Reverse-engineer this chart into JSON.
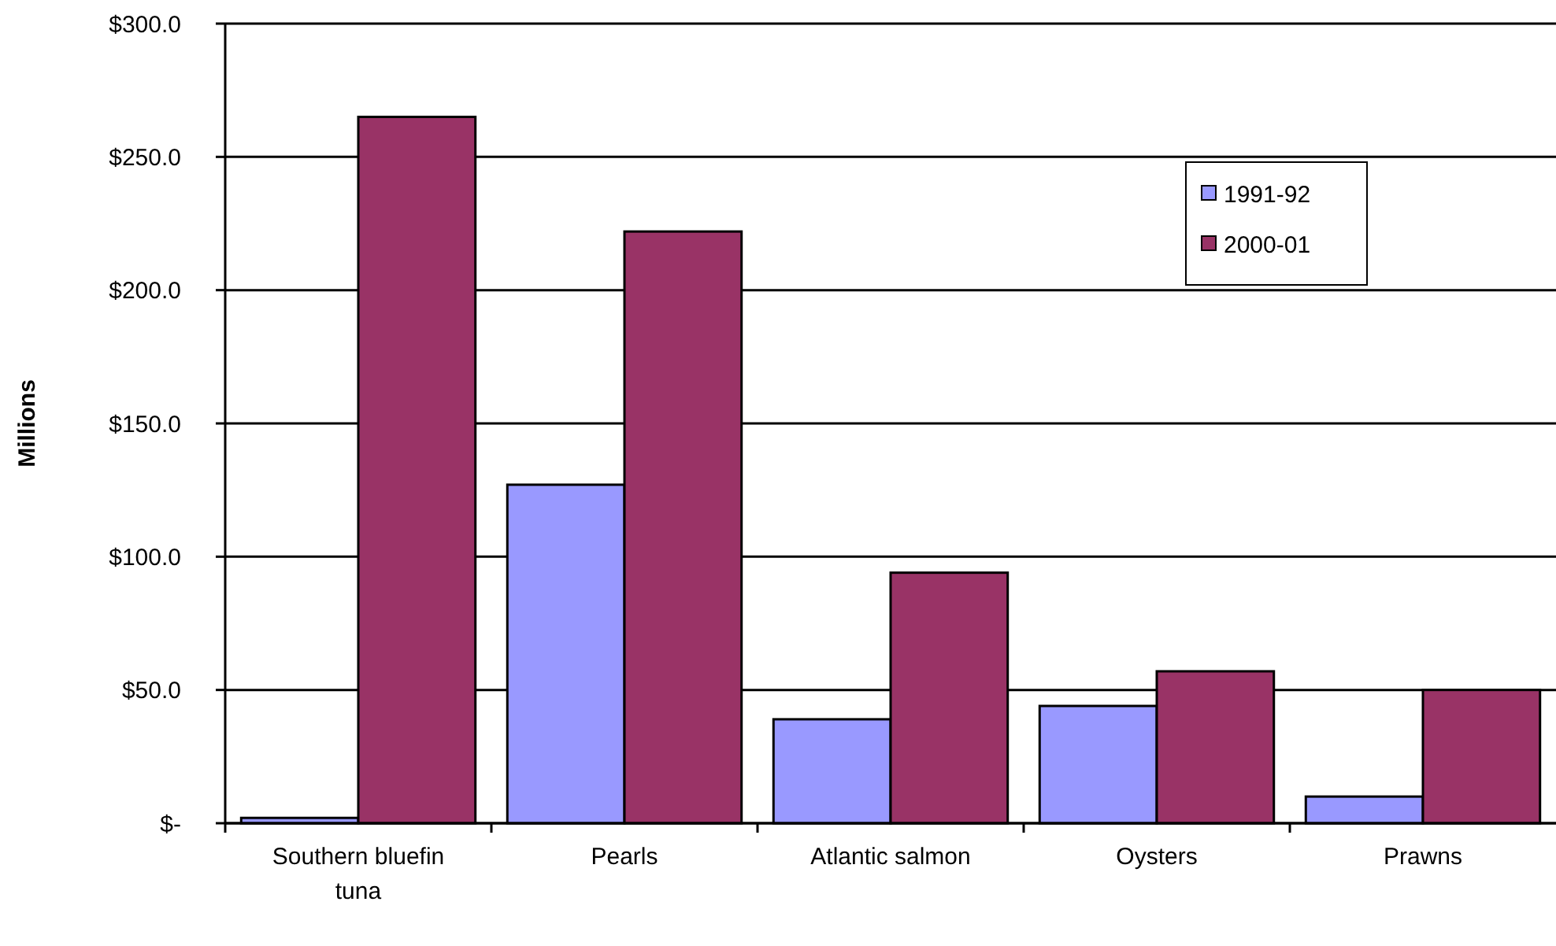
{
  "chart_data": {
    "type": "bar",
    "ylabel": "Millions",
    "categories": [
      "Southern bluefin tuna",
      "Pearls",
      "Atlantic salmon",
      "Oysters",
      "Prawns"
    ],
    "series": [
      {
        "name": "1991-92",
        "color": "#9999ff",
        "values": [
          2,
          127,
          39,
          44,
          10
        ]
      },
      {
        "name": "2000-01",
        "color": "#993366",
        "values": [
          265,
          222,
          94,
          57,
          50
        ]
      }
    ],
    "ylim": [
      0,
      300
    ],
    "yticks": [
      {
        "value": 0,
        "label": "$-"
      },
      {
        "value": 50,
        "label": "$50.0"
      },
      {
        "value": 100,
        "label": "$100.0"
      },
      {
        "value": 150,
        "label": "$150.0"
      },
      {
        "value": 200,
        "label": "$200.0"
      },
      {
        "value": 250,
        "label": "$250.0"
      },
      {
        "value": 300,
        "label": "$300.0"
      }
    ],
    "grid": "y",
    "legend": "top right"
  }
}
